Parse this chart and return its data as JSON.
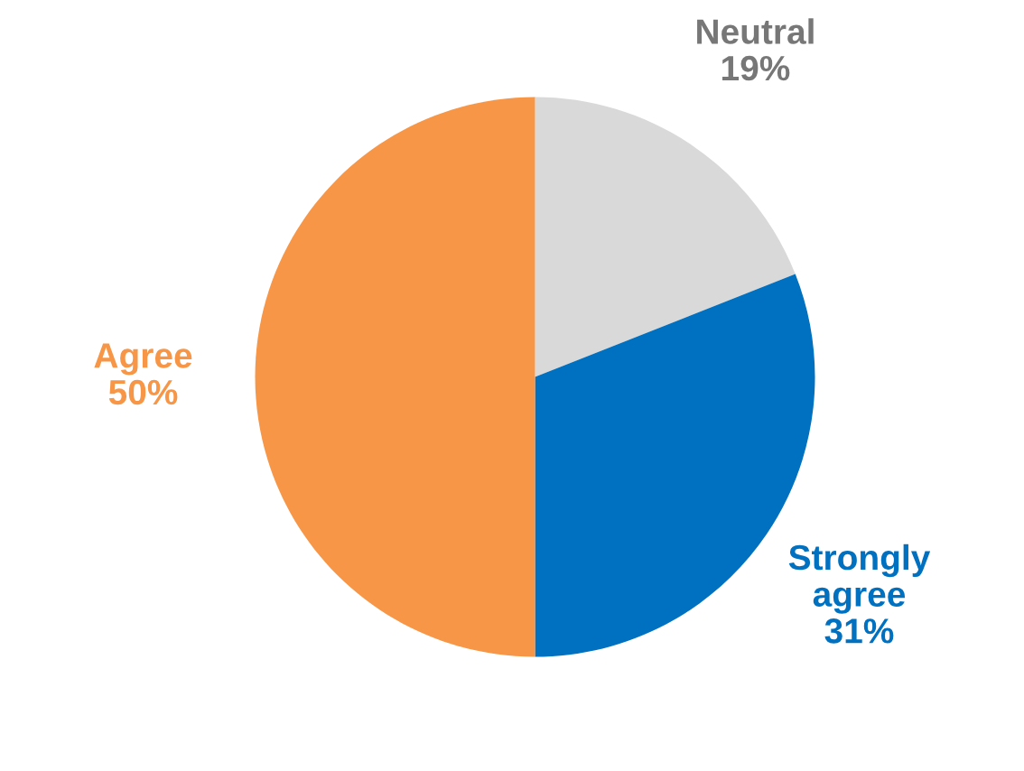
{
  "chart_data": {
    "type": "pie",
    "categories": [
      "Neutral",
      "Strongly agree",
      "Agree"
    ],
    "values": [
      19,
      31,
      50
    ],
    "colors": [
      "#d9d9d9",
      "#0070c0",
      "#f79646"
    ],
    "value_labels": [
      "19%",
      "31%",
      "50%"
    ],
    "legend": false
  }
}
